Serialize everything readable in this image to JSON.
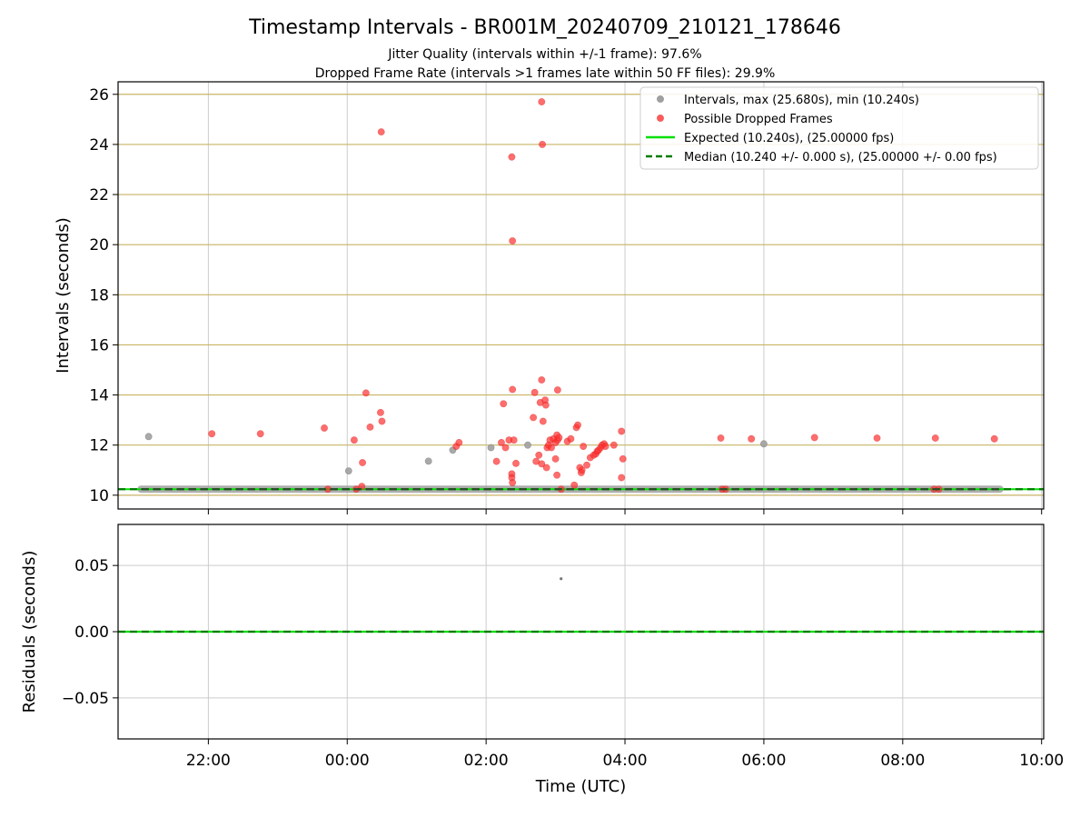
{
  "title": "Timestamp Intervals - BR001M_20240709_210121_178646",
  "subtitle_1": "Jitter Quality (intervals within +/-1 frame): 97.6%",
  "subtitle_2": "Dropped Frame Rate (intervals >1 frames late within 50 FF files): 29.9%",
  "colors": {
    "intervals": "#a0a0a0",
    "dropped": "#ff3030",
    "expected": "#00e000",
    "median": "#007a00",
    "hgrid_top": "#c8b464",
    "grid": "#cccccc"
  },
  "chart_data": [
    {
      "type": "scatter",
      "panel": "top",
      "xlabel": "",
      "ylabel": "Intervals (seconds)",
      "x_unit": "hours since 2024-07-09 00:00 UTC",
      "xlim": [
        -3.3,
        10.03
      ],
      "ylim": [
        9.45,
        26.5
      ],
      "x_ticks": [
        -2,
        0,
        2,
        4,
        6,
        8,
        10
      ],
      "x_tick_labels": [
        "22:00",
        "00:00",
        "02:00",
        "04:00",
        "06:00",
        "08:00",
        "10:00"
      ],
      "x_tick_labels_visible": false,
      "y_ticks": [
        10,
        12,
        14,
        16,
        18,
        20,
        22,
        24,
        26
      ],
      "y_tick_labels": [
        "10",
        "12",
        "14",
        "16",
        "18",
        "20",
        "22",
        "24",
        "26"
      ],
      "legend_position": "top-right",
      "legend": [
        "Intervals, max (25.680s), min (10.240s)",
        "Possible Dropped Frames",
        "Expected (10.240s), (25.00000 fps)",
        "Median (10.240 +/- 0.000 s), (25.00000 +/- 0.00 fps)"
      ],
      "lines": [
        {
          "name": "Expected",
          "y": 10.24
        },
        {
          "name": "Median",
          "y": 10.24
        }
      ],
      "intervals_baseline": {
        "x_start": -2.97,
        "x_end": 9.4,
        "y": 10.24
      },
      "series": [
        {
          "name": "Intervals",
          "points": [
            [
              -2.86,
              12.34
            ],
            [
              0.02,
              10.97
            ],
            [
              1.17,
              11.36
            ],
            [
              1.52,
              11.8
            ],
            [
              2.07,
              11.9
            ],
            [
              2.6,
              12.0
            ],
            [
              6.0,
              12.05
            ]
          ]
        },
        {
          "name": "Possible Dropped Frames",
          "points": [
            [
              -1.95,
              12.45
            ],
            [
              -1.25,
              12.45
            ],
            [
              -0.33,
              12.68
            ],
            [
              0.1,
              12.2
            ],
            [
              0.22,
              11.3
            ],
            [
              0.27,
              14.08
            ],
            [
              0.33,
              12.72
            ],
            [
              0.48,
              13.3
            ],
            [
              0.5,
              12.95
            ],
            [
              0.49,
              24.5
            ],
            [
              -0.28,
              10.24
            ],
            [
              0.13,
              10.24
            ],
            [
              0.21,
              10.35
            ],
            [
              1.57,
              11.95
            ],
            [
              1.61,
              12.1
            ],
            [
              2.15,
              11.35
            ],
            [
              2.22,
              12.1
            ],
            [
              2.25,
              13.65
            ],
            [
              2.28,
              11.9
            ],
            [
              2.33,
              12.2
            ],
            [
              2.37,
              10.85
            ],
            [
              2.37,
              10.7
            ],
            [
              2.38,
              10.5
            ],
            [
              2.38,
              14.22
            ],
            [
              2.4,
              12.2
            ],
            [
              2.43,
              11.27
            ],
            [
              2.37,
              23.5
            ],
            [
              2.38,
              20.15
            ],
            [
              2.8,
              25.7
            ],
            [
              2.81,
              24.0
            ],
            [
              2.8,
              14.6
            ],
            [
              2.7,
              14.1
            ],
            [
              2.78,
              13.7
            ],
            [
              2.85,
              13.8
            ],
            [
              2.86,
              13.6
            ],
            [
              2.82,
              12.95
            ],
            [
              2.68,
              13.1
            ],
            [
              2.72,
              11.35
            ],
            [
              2.76,
              11.6
            ],
            [
              2.8,
              11.25
            ],
            [
              2.87,
              11.1
            ],
            [
              2.88,
              11.9
            ],
            [
              2.9,
              12.0
            ],
            [
              2.92,
              12.2
            ],
            [
              2.94,
              11.9
            ],
            [
              2.97,
              12.25
            ],
            [
              3.0,
              12.1
            ],
            [
              3.02,
              12.4
            ],
            [
              3.03,
              12.2
            ],
            [
              3.0,
              11.45
            ],
            [
              3.02,
              10.8
            ],
            [
              3.05,
              12.3
            ],
            [
              3.03,
              14.2
            ],
            [
              3.08,
              10.24
            ],
            [
              3.17,
              12.15
            ],
            [
              3.22,
              12.25
            ],
            [
              3.27,
              10.4
            ],
            [
              3.3,
              12.7
            ],
            [
              3.32,
              12.8
            ],
            [
              3.35,
              11.1
            ],
            [
              3.37,
              10.9
            ],
            [
              3.38,
              11.0
            ],
            [
              3.4,
              11.95
            ],
            [
              3.45,
              11.2
            ],
            [
              3.5,
              11.5
            ],
            [
              3.55,
              11.6
            ],
            [
              3.58,
              11.65
            ],
            [
              3.6,
              11.75
            ],
            [
              3.62,
              11.8
            ],
            [
              3.65,
              11.9
            ],
            [
              3.67,
              12.0
            ],
            [
              3.7,
              12.05
            ],
            [
              3.72,
              11.95
            ],
            [
              3.84,
              12.0
            ],
            [
              3.95,
              12.55
            ],
            [
              3.97,
              11.45
            ],
            [
              3.95,
              10.7
            ],
            [
              5.38,
              12.28
            ],
            [
              5.82,
              12.25
            ],
            [
              6.73,
              12.3
            ],
            [
              7.63,
              12.28
            ],
            [
              8.47,
              12.28
            ],
            [
              9.32,
              12.25
            ],
            [
              5.4,
              10.24
            ],
            [
              5.45,
              10.24
            ],
            [
              8.45,
              10.24
            ],
            [
              8.52,
              10.24
            ]
          ]
        }
      ]
    },
    {
      "type": "scatter",
      "panel": "bottom",
      "xlabel": "Time (UTC)",
      "ylabel": "Residuals (seconds)",
      "x_unit": "hours since 2024-07-09 00:00 UTC",
      "xlim": [
        -3.3,
        10.03
      ],
      "ylim": [
        -0.081,
        0.081
      ],
      "x_ticks": [
        -2,
        0,
        2,
        4,
        6,
        8,
        10
      ],
      "x_tick_labels": [
        "22:00",
        "00:00",
        "02:00",
        "04:00",
        "06:00",
        "08:00",
        "10:00"
      ],
      "y_ticks": [
        0.05,
        0.0,
        -0.05
      ],
      "y_tick_labels": [
        "0.05",
        "0.00",
        "−0.05"
      ],
      "lines": [
        {
          "name": "Expected",
          "y": 0.0
        },
        {
          "name": "Median",
          "y": 0.0
        }
      ],
      "series": [
        {
          "name": "Residuals",
          "points": [
            [
              3.08,
              0.04
            ]
          ]
        }
      ]
    }
  ]
}
